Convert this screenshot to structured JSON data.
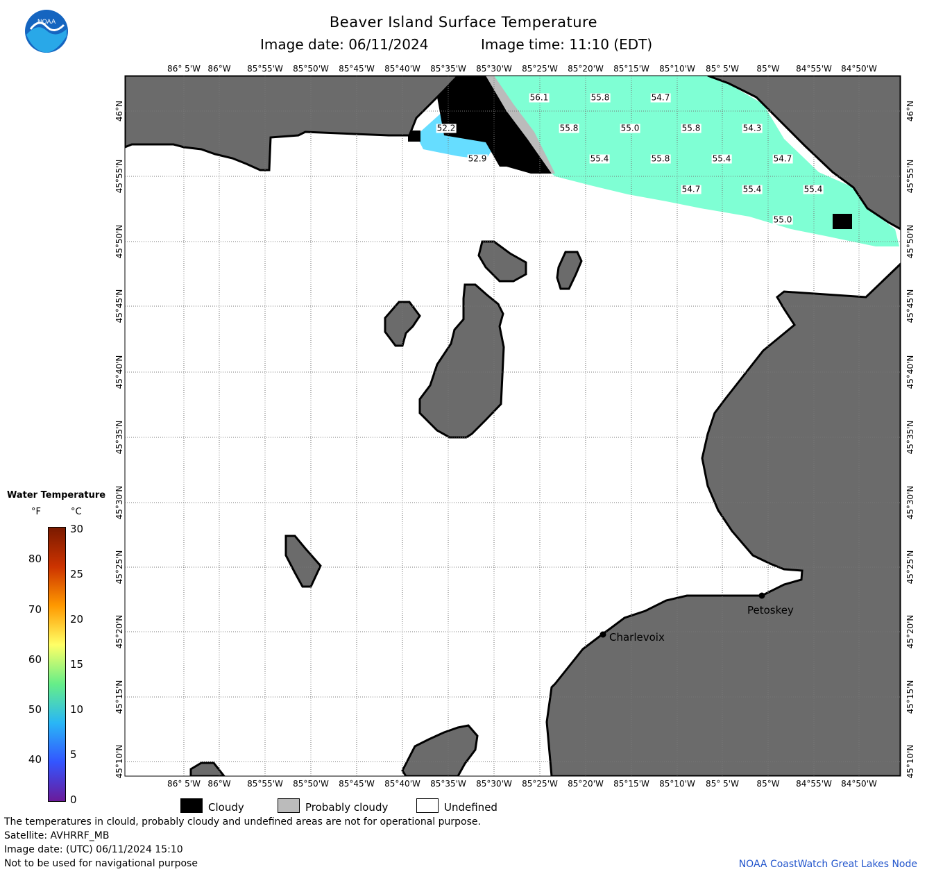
{
  "header": {
    "title": "Beaver Island Surface Temperature",
    "image_date": "Image date: 06/11/2024",
    "image_time": "Image time: 11:10 (EDT)"
  },
  "logo": {
    "text": "NOAA",
    "icon": "noaa-logo-icon"
  },
  "axes": {
    "lon_labels": [
      "86° 5'W",
      "86°W",
      "85°55'W",
      "85°50'W",
      "85°45'W",
      "85°40'W",
      "85°35'W",
      "85°30'W",
      "85°25'W",
      "85°20'W",
      "85°15'W",
      "85°10'W",
      "85° 5'W",
      "85°W",
      "84°55'W",
      "84°50'W"
    ],
    "lat_labels": [
      "46°N",
      "45°55'N",
      "45°50'N",
      "45°45'N",
      "45°40'N",
      "45°35'N",
      "45°30'N",
      "45°25'N",
      "45°20'N",
      "45°15'N",
      "45°10'N"
    ]
  },
  "temperature_labels": [
    "56.1",
    "55.8",
    "54.7",
    "52.2",
    "55.8",
    "55.0",
    "55.8",
    "54.3",
    "52.9",
    "55.4",
    "55.8",
    "55.4",
    "54.7",
    "54.7",
    "55.4",
    "55.4",
    "55.0"
  ],
  "cities": [
    {
      "name": "Charlevoix"
    },
    {
      "name": "Petoskey"
    }
  ],
  "colorbar": {
    "title": "Water Temperature",
    "unit_f": "°F",
    "unit_c": "°C",
    "f_ticks": [
      "80",
      "70",
      "60",
      "50",
      "40"
    ],
    "c_ticks": [
      "30",
      "25",
      "20",
      "15",
      "10",
      "5",
      "0"
    ],
    "colors": [
      "#6a1b9a",
      "#3355ff",
      "#29b6f6",
      "#66ee88",
      "#ffff66",
      "#ff9900",
      "#cc3300",
      "#7a1a00"
    ]
  },
  "legend": {
    "cloudy": "Cloudy",
    "probably_cloudy": "Probably cloudy",
    "undefined": "Undefined",
    "colors": {
      "cloudy": "#000000",
      "probably_cloudy": "#bbbbbb",
      "undefined": "#ffffff"
    }
  },
  "footer": {
    "line1": "The temperatures in clould, probably cloudy and undefined areas are not for operational purpose.",
    "line2": "Satellite: AVHRRF_MB",
    "line3": "Image date: (UTC) 06/11/2024  15:10",
    "line4": "Not to be used for navigational purpose",
    "credit": "NOAA CoastWatch Great Lakes Node"
  },
  "colors": {
    "land": "#6b6b6b",
    "water_warm": "#7fffd4",
    "water_cool": "#66ddff",
    "grid": "#777777"
  }
}
